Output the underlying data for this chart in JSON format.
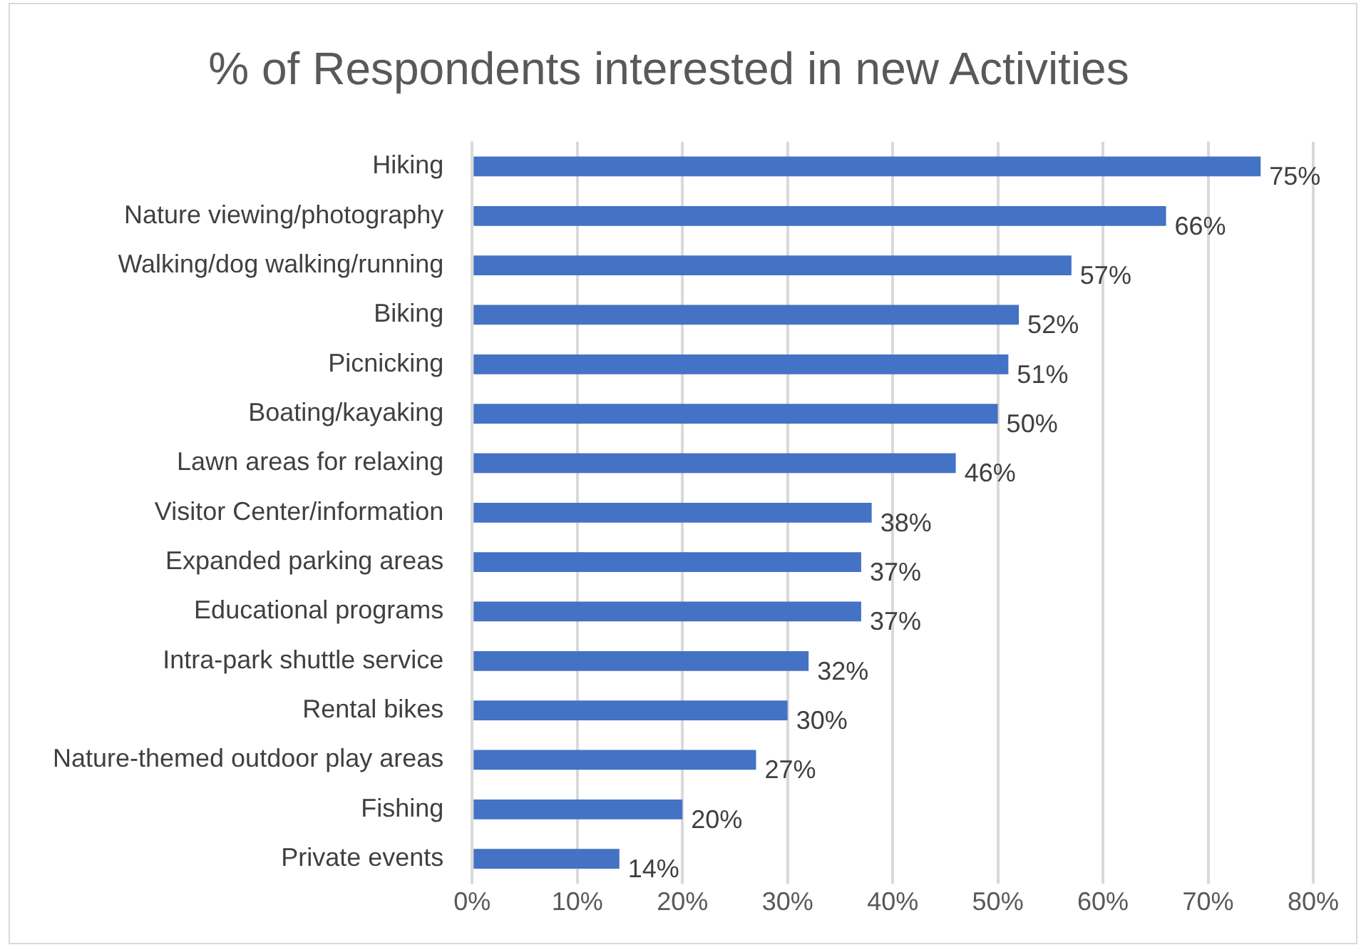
{
  "chart_data": {
    "type": "bar",
    "orientation": "horizontal",
    "title": "% of Respondents interested in new Activities",
    "categories": [
      "Hiking",
      "Nature viewing/photography",
      "Walking/dog walking/running",
      "Biking",
      "Picnicking",
      "Boating/kayaking",
      "Lawn areas for relaxing",
      "Visitor Center/information",
      "Expanded parking areas",
      "Educational programs",
      "Intra-park shuttle service",
      "Rental bikes",
      "Nature-themed outdoor play areas",
      "Fishing",
      "Private events"
    ],
    "values": [
      75,
      66,
      57,
      52,
      51,
      50,
      46,
      38,
      37,
      37,
      32,
      30,
      27,
      20,
      14
    ],
    "value_labels": [
      "75%",
      "66%",
      "57%",
      "52%",
      "51%",
      "50%",
      "46%",
      "38%",
      "37%",
      "37%",
      "32%",
      "30%",
      "27%",
      "20%",
      "14%"
    ],
    "color": "#4472c4",
    "xlim": [
      0,
      80
    ],
    "xticks": [
      {
        "value": 0,
        "label": "0%"
      },
      {
        "value": 10,
        "label": "10%"
      },
      {
        "value": 20,
        "label": "20%"
      },
      {
        "value": 30,
        "label": "30%"
      },
      {
        "value": 40,
        "label": "40%"
      },
      {
        "value": 50,
        "label": "50%"
      },
      {
        "value": 60,
        "label": "60%"
      },
      {
        "value": 70,
        "label": "70%"
      },
      {
        "value": 80,
        "label": "80%"
      }
    ],
    "grid": "x",
    "legend": false
  }
}
